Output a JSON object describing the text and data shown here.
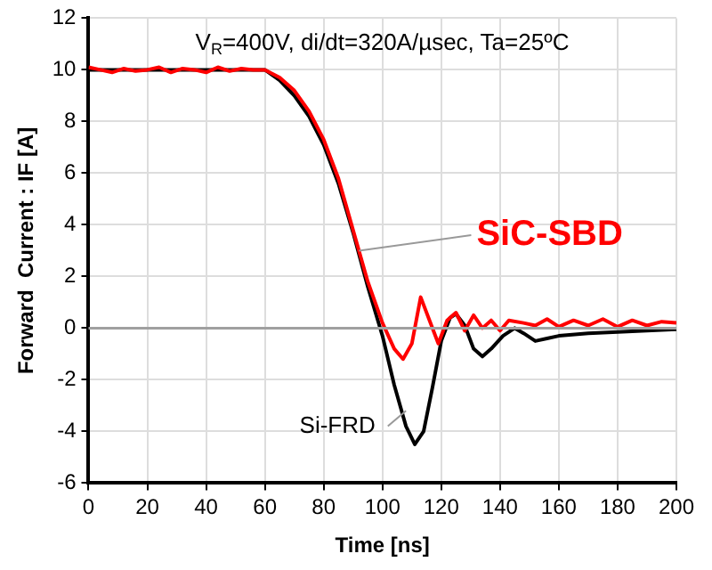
{
  "chart_data": {
    "type": "line",
    "xlabel": "Time [ns]",
    "ylabel": "Forward  Current : IF [A]",
    "annotations": [
      "V$_{R}$=400V, di/dt=320A/µsec, Ta=25ºC"
    ],
    "xlim": [
      0,
      200
    ],
    "xticks": [
      0,
      20,
      40,
      60,
      80,
      100,
      120,
      140,
      160,
      180,
      200
    ],
    "ylim": [
      -6,
      12
    ],
    "yticks": [
      -6,
      -4,
      -2,
      0,
      2,
      4,
      6,
      8,
      10,
      12
    ],
    "grid": true,
    "legend": false,
    "marker": "none",
    "line_style": "solid",
    "ref_lines": [
      {
        "axis": "y",
        "value": 0,
        "color": "#a0a0a0"
      }
    ],
    "series": [
      {
        "name": "SiC-SBD",
        "color": "#ff0000",
        "x": [
          0,
          4,
          8,
          12,
          16,
          20,
          24,
          28,
          32,
          36,
          40,
          44,
          48,
          52,
          56,
          60,
          65,
          70,
          75,
          80,
          85,
          90,
          95,
          100,
          104,
          107,
          110,
          113,
          116,
          119,
          122,
          125,
          128,
          131,
          134,
          137,
          140,
          143,
          148,
          152,
          156,
          160,
          165,
          170,
          175,
          180,
          185,
          190,
          195,
          200
        ],
        "values": [
          10.1,
          10,
          9.9,
          10.05,
          9.95,
          10,
          10.1,
          9.9,
          10.05,
          10,
          9.9,
          10.1,
          9.95,
          10.05,
          10,
          10,
          9.7,
          9.2,
          8.4,
          7.3,
          5.8,
          3.8,
          1.8,
          0.2,
          -0.8,
          -1.2,
          -0.6,
          1.2,
          0.3,
          -0.6,
          0.3,
          0.6,
          -0.1,
          0.5,
          0,
          0.3,
          -0.1,
          0.3,
          0.2,
          0.1,
          0.35,
          0.05,
          0.3,
          0.1,
          0.35,
          0.05,
          0.3,
          0.1,
          0.25,
          0.2
        ]
      },
      {
        "name": "Si-FRD",
        "color": "#000000",
        "x": [
          0,
          60,
          65,
          70,
          75,
          80,
          85,
          90,
          95,
          100,
          104,
          108,
          111,
          114,
          117,
          120,
          123,
          125,
          128,
          131,
          134,
          137,
          141,
          145,
          148,
          152,
          156,
          160,
          170,
          180,
          200
        ],
        "values": [
          10,
          10,
          9.6,
          9,
          8.2,
          7.1,
          5.6,
          3.7,
          1.6,
          -0.3,
          -2.2,
          -3.8,
          -4.5,
          -4,
          -2.3,
          -0.5,
          0.4,
          0.55,
          0.1,
          -0.8,
          -1.1,
          -0.8,
          -0.3,
          0,
          -0.2,
          -0.5,
          -0.4,
          -0.3,
          -0.2,
          -0.15,
          -0.05
        ]
      }
    ]
  }
}
